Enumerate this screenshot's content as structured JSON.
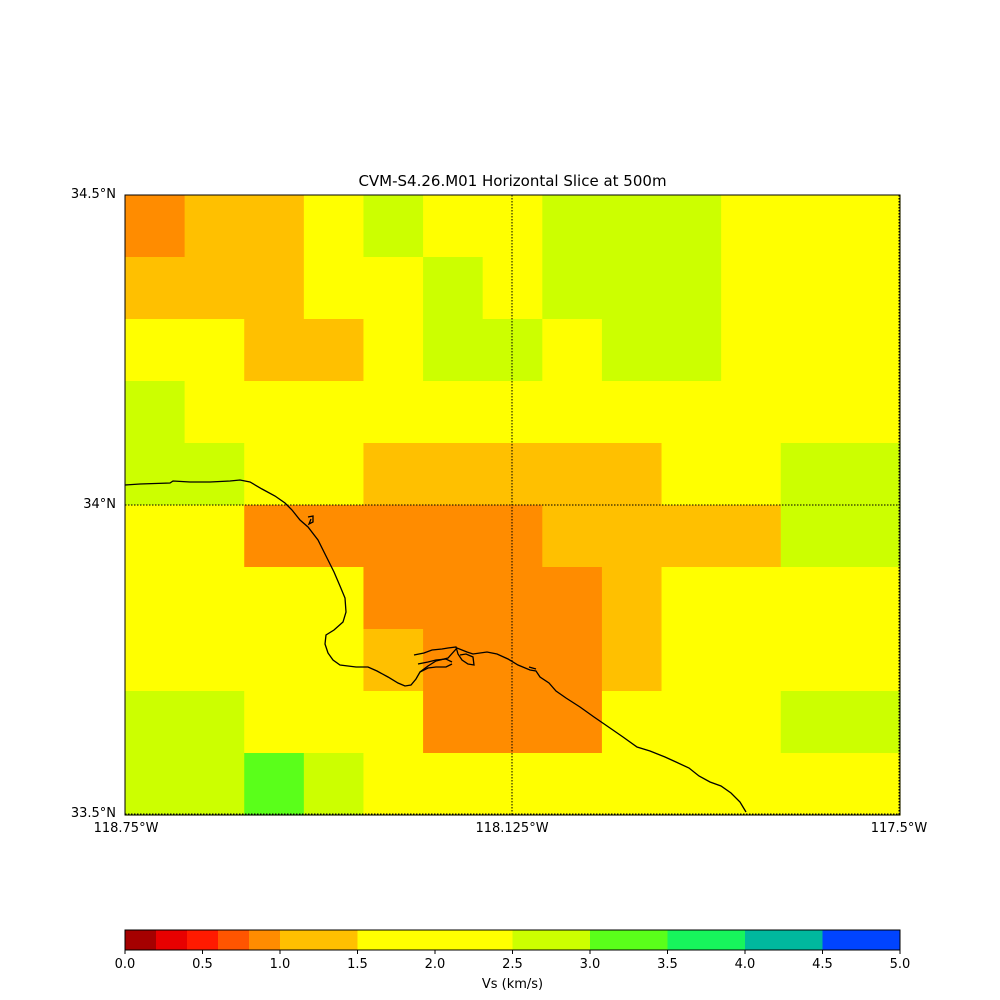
{
  "title": "CVM-S4.26.M01 Horizontal Slice at 500m",
  "lat_labels": [
    "34.5°N",
    "34°N",
    "33.5°N"
  ],
  "lon_labels": [
    "118.75°W",
    "118.125°W",
    "117.5°W"
  ],
  "extent": {
    "lon_min": -118.75,
    "lon_max": -117.5,
    "lat_min": 33.5,
    "lat_max": 34.5
  },
  "gridlines": {
    "lon": -118.125,
    "lat": 34.0,
    "style": "dotted"
  },
  "colorbar": {
    "label": "Vs (km/s)",
    "ticks": [
      "0.0",
      "0.5",
      "1.0",
      "1.5",
      "2.0",
      "2.5",
      "3.0",
      "3.5",
      "4.0",
      "4.5",
      "5.0"
    ],
    "bins": [
      {
        "from": 0.0,
        "to": 0.2,
        "color": "#a50000"
      },
      {
        "from": 0.2,
        "to": 0.4,
        "color": "#e80000"
      },
      {
        "from": 0.4,
        "to": 0.6,
        "color": "#ff1a00"
      },
      {
        "from": 0.6,
        "to": 0.8,
        "color": "#ff5500"
      },
      {
        "from": 0.8,
        "to": 1.0,
        "color": "#ff8c00"
      },
      {
        "from": 1.0,
        "to": 1.5,
        "color": "#ffc000"
      },
      {
        "from": 1.5,
        "to": 2.5,
        "color": "#ffff00"
      },
      {
        "from": 2.5,
        "to": 3.0,
        "color": "#ccff00"
      },
      {
        "from": 3.0,
        "to": 3.5,
        "color": "#5aff1a"
      },
      {
        "from": 3.5,
        "to": 4.0,
        "color": "#17f55c"
      },
      {
        "from": 4.0,
        "to": 4.5,
        "color": "#00b89e"
      },
      {
        "from": 4.5,
        "to": 5.0,
        "color": "#0044ff"
      }
    ]
  },
  "grid": {
    "rows": 10,
    "cols": 13,
    "legend": {
      "O": "#ff8c00",
      "A": "#ffc000",
      "Y": "#ffff00",
      "L": "#ccff00",
      "G": "#5aff1a"
    },
    "cells": [
      "OAAYLYYLLLYYY",
      "AAAYYLYLLLYYY",
      "YYAAYLLYLLYYY",
      "LYYYYYYYYYYYY",
      "LLYYAAAAAYYLL",
      "YYOOOOOAAAALL",
      "YYYYOOOOAYYYY",
      "YYYYAOOOAYYYY",
      "LLYYYOOOYYYLL",
      "LLGLYYYYYYYYY"
    ]
  }
}
